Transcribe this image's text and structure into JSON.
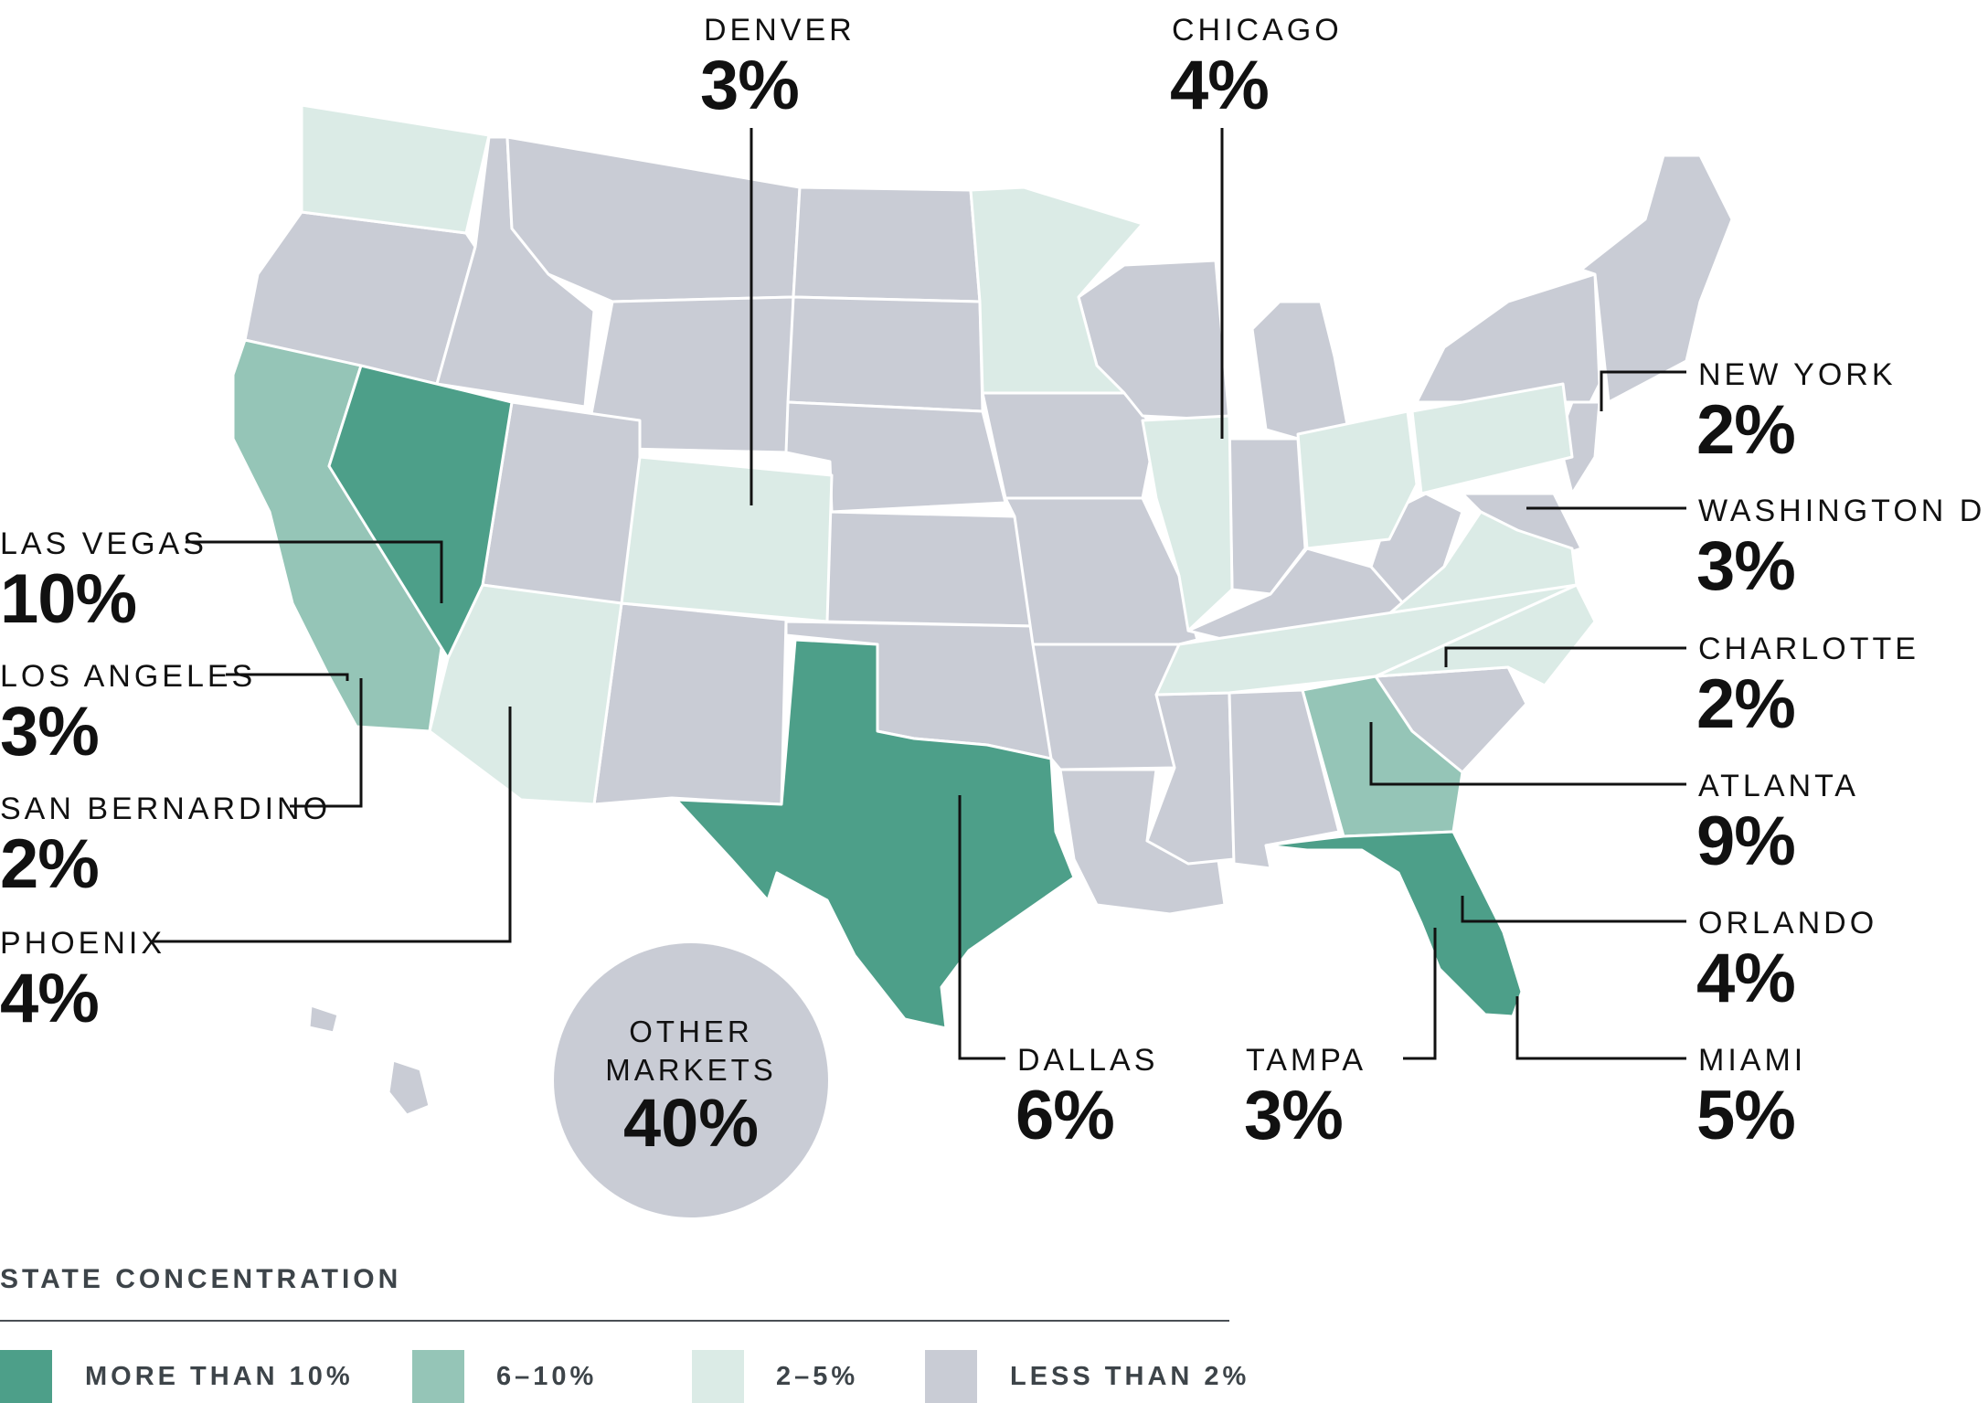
{
  "colors": {
    "more_than_10": "#4d9f89",
    "six_to_ten": "#95c5b7",
    "two_to_five": "#dbebe6",
    "less_than_2": "#c9ccd5",
    "border": "#ffffff",
    "leader": "#111111"
  },
  "markets": [
    {
      "id": "denver",
      "name": "DENVER",
      "pct": "3%"
    },
    {
      "id": "chicago",
      "name": "CHICAGO",
      "pct": "4%"
    },
    {
      "id": "new-york",
      "name": "NEW YORK",
      "pct": "2%"
    },
    {
      "id": "washington-dc",
      "name": "WASHINGTON D.C.",
      "pct": "3%"
    },
    {
      "id": "charlotte",
      "name": "CHARLOTTE",
      "pct": "2%"
    },
    {
      "id": "atlanta",
      "name": "ATLANTA",
      "pct": "9%"
    },
    {
      "id": "orlando",
      "name": "ORLANDO",
      "pct": "4%"
    },
    {
      "id": "miami",
      "name": "MIAMI",
      "pct": "5%"
    },
    {
      "id": "tampa",
      "name": "TAMPA",
      "pct": "3%"
    },
    {
      "id": "dallas",
      "name": "DALLAS",
      "pct": "6%"
    },
    {
      "id": "las-vegas",
      "name": "LAS VEGAS",
      "pct": "10%"
    },
    {
      "id": "los-angeles",
      "name": "LOS ANGELES",
      "pct": "3%"
    },
    {
      "id": "san-bernardino",
      "name": "SAN BERNARDINO",
      "pct": "2%"
    },
    {
      "id": "phoenix",
      "name": "PHOENIX",
      "pct": "4%"
    }
  ],
  "other_markets": {
    "line1": "OTHER",
    "line2": "MARKETS",
    "pct": "40%"
  },
  "legend": {
    "title": "STATE CONCENTRATION",
    "items": [
      {
        "label": "MORE THAN 10%",
        "color_key": "more_than_10"
      },
      {
        "label": "6–10%",
        "color_key": "six_to_ten"
      },
      {
        "label": "2–5%",
        "color_key": "two_to_five"
      },
      {
        "label": "LESS THAN 2%",
        "color_key": "less_than_2"
      }
    ]
  },
  "state_concentration": {
    "more_than_10": [
      "Nevada",
      "Texas",
      "Florida"
    ],
    "six_to_ten": [
      "California",
      "Georgia"
    ],
    "two_to_five": [
      "Washington",
      "Arizona",
      "Colorado",
      "Minnesota",
      "Illinois",
      "Ohio",
      "Pennsylvania",
      "Virginia",
      "North Carolina",
      "Tennessee"
    ],
    "less_than_2": [
      "All other states"
    ]
  }
}
